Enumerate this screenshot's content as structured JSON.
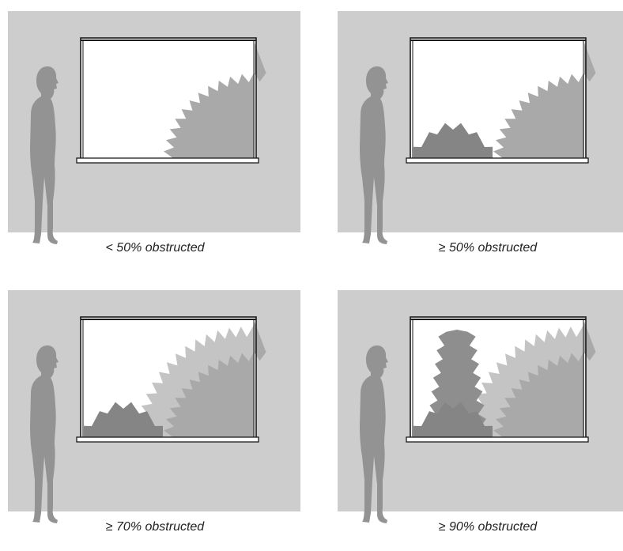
{
  "colors": {
    "wall": "#cdcdcd",
    "person": "#939393",
    "window_bg": "#ffffff",
    "frame": "#1a1a1a",
    "tree_far": "#a9a9a9",
    "tree_light": "#c4c4c4",
    "shrub_dark": "#858585",
    "tall_dark": "#8e8e8e"
  },
  "panels": [
    {
      "id": "lt-50",
      "caption": "< 50% obstructed",
      "obstruction": "less than 50%",
      "layers": [
        "tree_far"
      ]
    },
    {
      "id": "ge-50",
      "caption": "≥ 50% obstructed",
      "obstruction": "at least 50%",
      "layers": [
        "tree_far",
        "shrub_dark"
      ]
    },
    {
      "id": "ge-70",
      "caption": "≥ 70% obstructed",
      "obstruction": "at least 70%",
      "layers": [
        "tree_light",
        "tree_far",
        "shrub_dark"
      ]
    },
    {
      "id": "ge-90",
      "caption": "≥ 90% obstructed",
      "obstruction": "at least 90%",
      "layers": [
        "tree_light",
        "tree_far",
        "tall_dark",
        "shrub_dark"
      ]
    }
  ]
}
